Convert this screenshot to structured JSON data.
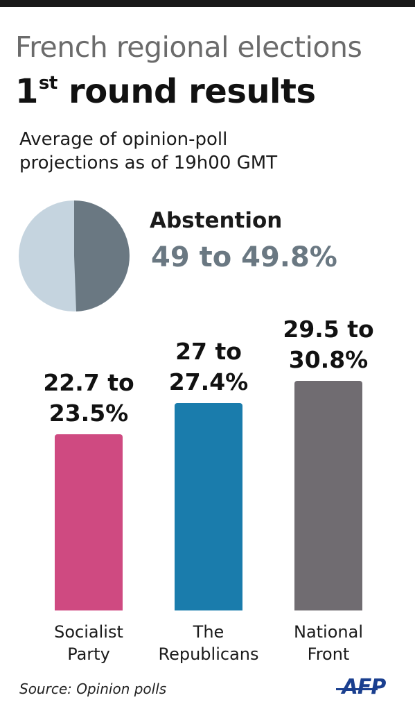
{
  "title": "French regional elections",
  "subtitle": {
    "main": "1",
    "sup": "st",
    "rest": " round results"
  },
  "description": [
    "Average of opinion-poll",
    "projections as of 19h00 GMT"
  ],
  "source": "Source: Opinion polls",
  "logo_text": "AFP",
  "chart_data": [
    {
      "type": "pie",
      "label": "Abstention",
      "value_text": "49 to 49.8%",
      "value": 49.4,
      "colors": {
        "slice": "#6a7882",
        "rest": "#c5d4df"
      }
    },
    {
      "type": "bar",
      "categories": [
        [
          "Socialist",
          "Party"
        ],
        [
          "The",
          "Republicans"
        ],
        [
          "National",
          "Front"
        ]
      ],
      "values": [
        23.1,
        27.2,
        30.15
      ],
      "value_labels": [
        [
          "22.7 to",
          "23.5%"
        ],
        [
          "27 to",
          "27.4%"
        ],
        [
          "29.5 to",
          "30.8%"
        ]
      ],
      "colors": [
        "#cf4a81",
        "#1a7cac",
        "#706c71"
      ],
      "title": "",
      "xlabel": "",
      "ylabel": "",
      "ylim": [
        0,
        30.15
      ]
    }
  ]
}
